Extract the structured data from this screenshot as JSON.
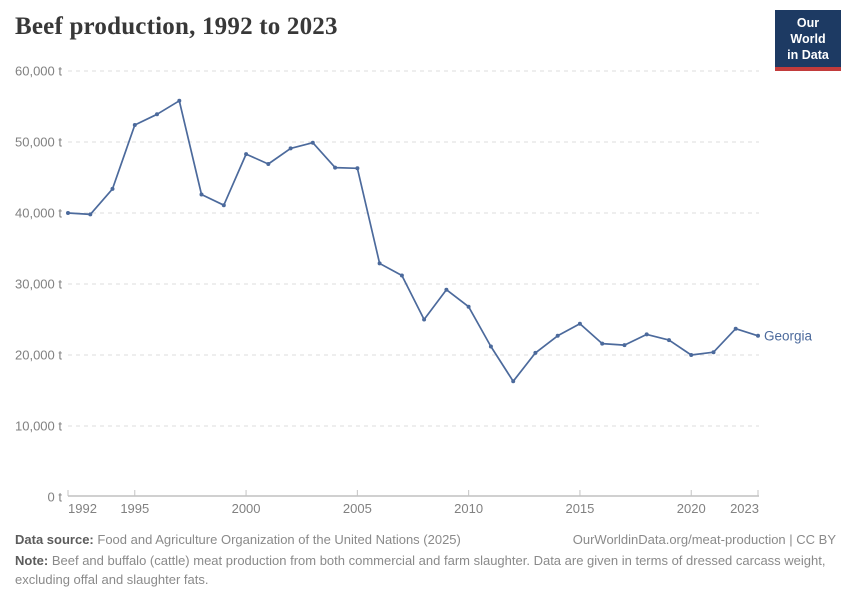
{
  "header": {
    "title": "Beef production, 1992 to 2023"
  },
  "logo": {
    "line1": "Our World",
    "line2": "in Data",
    "bg_color": "#1d3a63",
    "accent_color": "#c23b3b"
  },
  "chart_data": {
    "type": "line",
    "title": "Beef production, 1992 to 2023",
    "unit": "t",
    "x": [
      1992,
      1993,
      1994,
      1995,
      1996,
      1997,
      1998,
      1999,
      2000,
      2001,
      2002,
      2003,
      2004,
      2005,
      2006,
      2007,
      2008,
      2009,
      2010,
      2011,
      2012,
      2013,
      2014,
      2015,
      2016,
      2017,
      2018,
      2019,
      2020,
      2021,
      2022,
      2023
    ],
    "series": [
      {
        "name": "Georgia",
        "color": "#4C6A9C",
        "values": [
          40000,
          39800,
          43400,
          52400,
          53900,
          55800,
          42600,
          41100,
          48300,
          46900,
          49100,
          49900,
          46400,
          46300,
          32900,
          31200,
          25000,
          29200,
          26800,
          21200,
          16300,
          20300,
          22700,
          24400,
          21600,
          21400,
          22900,
          22100,
          20000,
          20400,
          23700,
          22700
        ]
      }
    ],
    "xlim": [
      1992,
      2023
    ],
    "ylim": [
      0,
      60000
    ],
    "xticks": [
      {
        "value": 1992,
        "label": "1992"
      },
      {
        "value": 1995,
        "label": "1995"
      },
      {
        "value": 2000,
        "label": "2000"
      },
      {
        "value": 2005,
        "label": "2005"
      },
      {
        "value": 2010,
        "label": "2010"
      },
      {
        "value": 2015,
        "label": "2015"
      },
      {
        "value": 2020,
        "label": "2020"
      },
      {
        "value": 2023,
        "label": "2023"
      }
    ],
    "yticks": [
      {
        "value": 0,
        "label": "0 t"
      },
      {
        "value": 10000,
        "label": "10,000 t"
      },
      {
        "value": 20000,
        "label": "20,000 t"
      },
      {
        "value": 30000,
        "label": "30,000 t"
      },
      {
        "value": 40000,
        "label": "40,000 t"
      },
      {
        "value": 50000,
        "label": "50,000 t"
      },
      {
        "value": 60000,
        "label": "60,000 t"
      }
    ],
    "grid": "horizontal-dashed",
    "legend_position": "end-of-line-label",
    "colors": {
      "line": "#4C6A9C",
      "gridline": "#dddddd",
      "axis": "#a1a1a1",
      "tick": "#c4c4c4",
      "tick_label": "#818181"
    }
  },
  "footer": {
    "data_source_label": "Data source:",
    "data_source_text": "Food and Agriculture Organization of the United Nations (2025)",
    "link_text": "OurWorldinData.org/meat-production | CC BY",
    "note_label": "Note:",
    "note_text": "Beef and buffalo (cattle) meat production from both commercial and farm slaughter. Data are given in terms of dressed carcass weight, excluding offal and slaughter fats."
  }
}
